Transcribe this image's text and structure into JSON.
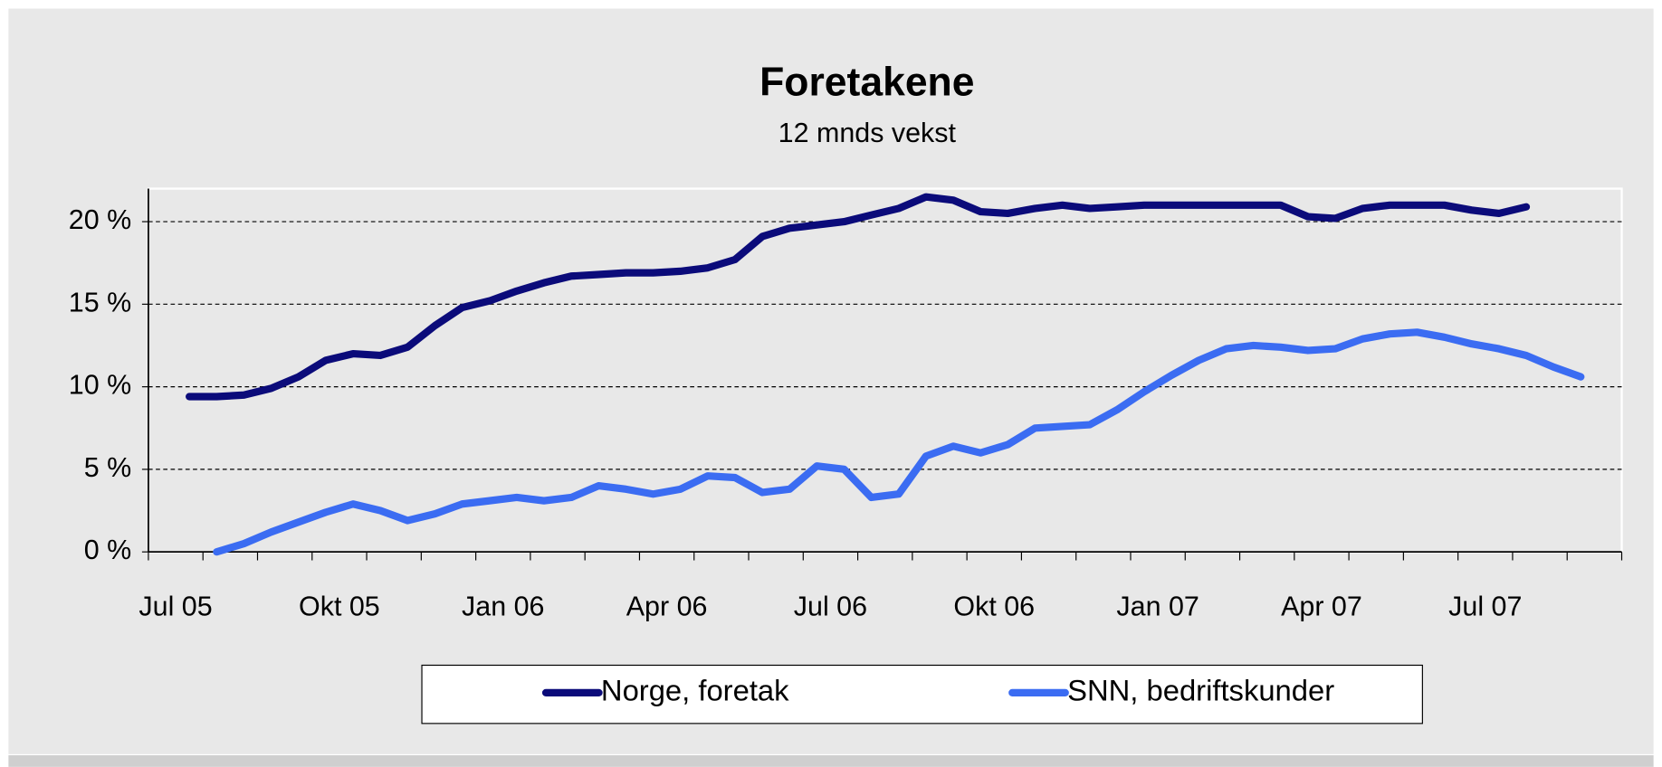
{
  "chart_data": {
    "type": "line",
    "title": "Foretakene",
    "subtitle": "12 mnds vekst",
    "categories": [
      "Jul 05",
      null,
      null,
      null,
      null,
      null,
      "Okt 05",
      null,
      null,
      null,
      null,
      null,
      "Jan 06",
      null,
      null,
      null,
      null,
      null,
      "Apr 06",
      null,
      null,
      null,
      null,
      null,
      "Jul 06",
      null,
      null,
      null,
      null,
      null,
      "Okt 06",
      null,
      null,
      null,
      null,
      null,
      "Jan 07",
      null,
      null,
      null,
      null,
      null,
      "Apr 07",
      null,
      null,
      null,
      null,
      null,
      "Jul 07",
      null,
      null,
      null,
      null,
      null
    ],
    "series": [
      {
        "name": "Norge, foretak",
        "color": "#0b0b7a",
        "values": [
          null,
          9.4,
          9.4,
          9.5,
          9.9,
          10.6,
          11.6,
          12.0,
          11.9,
          12.4,
          13.7,
          14.8,
          15.2,
          15.8,
          16.3,
          16.7,
          16.8,
          16.9,
          16.9,
          17.0,
          17.2,
          17.7,
          19.1,
          19.6,
          19.8,
          20.0,
          20.4,
          20.8,
          21.5,
          21.3,
          20.6,
          20.5,
          20.8,
          21.0,
          20.8,
          20.9,
          21.0,
          21.0,
          21.0,
          21.0,
          21.0,
          21.0,
          20.3,
          20.2,
          20.8,
          21.0,
          21.0,
          21.0,
          20.7,
          20.5,
          20.9,
          null,
          null,
          null
        ]
      },
      {
        "name": "SNN, bedriftskunder",
        "color": "#3b6cf2",
        "values": [
          null,
          null,
          0,
          0.5,
          1.2,
          1.8,
          2.4,
          2.9,
          2.5,
          1.9,
          2.3,
          2.9,
          3.1,
          3.3,
          3.1,
          3.3,
          4.0,
          3.8,
          3.5,
          3.8,
          4.6,
          4.5,
          3.6,
          3.8,
          5.2,
          5.0,
          3.3,
          3.5,
          5.8,
          6.4,
          6.0,
          6.5,
          7.5,
          7.6,
          7.7,
          8.6,
          9.7,
          10.7,
          11.6,
          12.3,
          12.5,
          12.4,
          12.2,
          12.3,
          12.9,
          13.2,
          13.3,
          13.0,
          12.6,
          12.3,
          11.9,
          11.2,
          10.6,
          null
        ]
      }
    ],
    "ylim": [
      0,
      22
    ],
    "yticks": [
      {
        "value": 0,
        "label": "0 %"
      },
      {
        "value": 5,
        "label": "5 %"
      },
      {
        "value": 10,
        "label": "10 %"
      },
      {
        "value": 15,
        "label": "15 %"
      },
      {
        "value": 20,
        "label": "20 %"
      }
    ],
    "grid": true,
    "legend": "bottom"
  }
}
